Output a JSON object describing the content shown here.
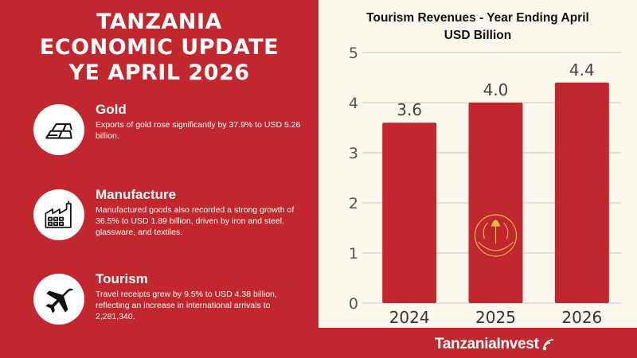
{
  "page_title": [
    "TANZANIA",
    "ECONOMIC UPDATE",
    "YE APRIL 2026"
  ],
  "highlights": [
    {
      "icon": "gold-bars-icon",
      "title": "Gold",
      "text": "Exports of gold rose significantly by 37.9% to USD 5.26 billion."
    },
    {
      "icon": "factory-icon",
      "title": "Manufacture",
      "text": "Manufactured goods also recorded a strong growth of 36.5% to USD 1.89 billion, driven by iron and steel, glassware, and textiles."
    },
    {
      "icon": "airplane-icon",
      "title": "Tourism",
      "text": "Travel receipts grew by 9.5% to USD 4.38 billion, reflecting an increase in international arrivals to 2,281,340."
    }
  ],
  "brand": "TanzaniaInvest",
  "colors": {
    "primary": "#c1272d",
    "panel": "#fbf9ee",
    "bar": "#c1272d",
    "grid": "#c8c8c8"
  },
  "chart_data": {
    "type": "bar",
    "title": [
      "Tourism Revenues - Year Ending April",
      "USD Billion"
    ],
    "categories": [
      "2024",
      "2025",
      "2026"
    ],
    "values": [
      3.6,
      4.0,
      4.4
    ],
    "data_labels": [
      "3.6",
      "4.0",
      "4.4"
    ],
    "ylim": [
      0,
      5
    ],
    "yticks": [
      "0",
      "1",
      "2",
      "3",
      "4",
      "5"
    ],
    "grid": true,
    "legend": "none"
  }
}
